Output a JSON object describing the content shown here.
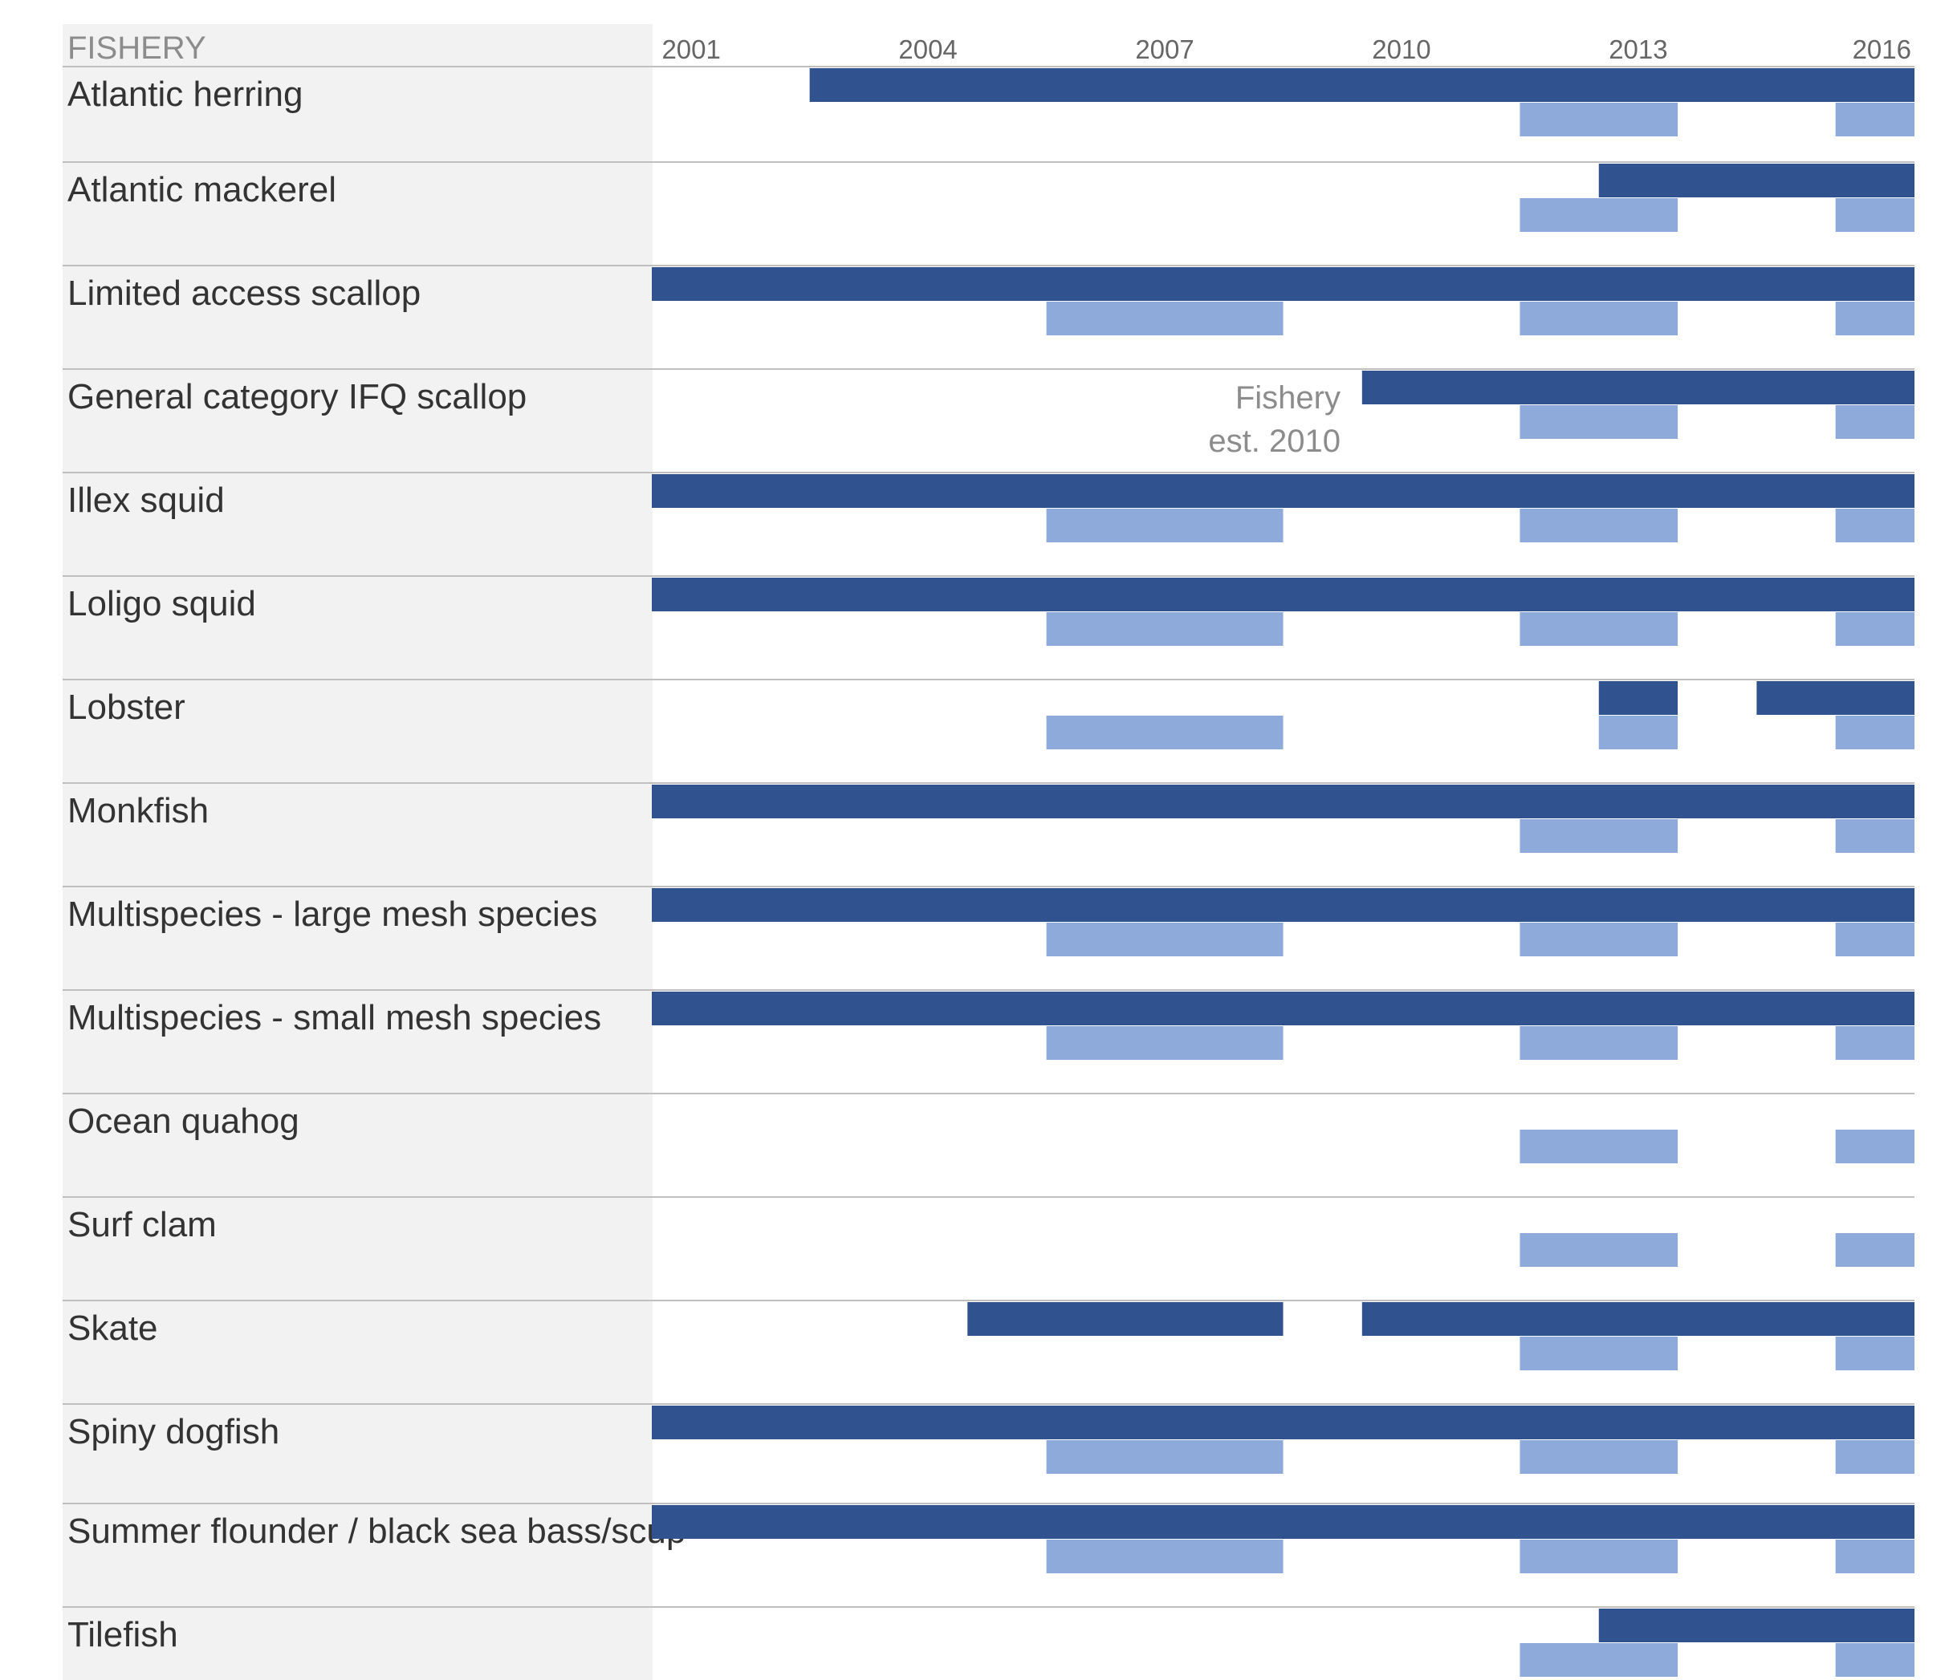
{
  "chart_data": {
    "type": "timeline",
    "column_header": "FISHERY",
    "x_ticks": [
      2001,
      2004,
      2007,
      2010,
      2013,
      2016
    ],
    "x_range": [
      2001,
      2017
    ],
    "colors": {
      "primary": "#30538f",
      "secondary": "#8eaadb",
      "label_panel": "#f2f2f2",
      "row_divider": "#bfbfbf"
    },
    "annotation": {
      "row": "General category IFQ scallop",
      "lines": [
        "Fishery",
        "est. 2010"
      ]
    },
    "rows": [
      {
        "label": "Atlantic herring",
        "primary": [
          [
            2003,
            2017
          ]
        ],
        "secondary": [
          [
            2012,
            2014
          ],
          [
            2016,
            2017
          ]
        ]
      },
      {
        "label": "Atlantic mackerel",
        "primary": [
          [
            2013,
            2017
          ]
        ],
        "secondary": [
          [
            2012,
            2014
          ],
          [
            2016,
            2017
          ]
        ]
      },
      {
        "label": "Limited access scallop",
        "primary": [
          [
            2001,
            2017
          ]
        ],
        "secondary": [
          [
            2006,
            2009
          ],
          [
            2012,
            2014
          ],
          [
            2016,
            2017
          ]
        ]
      },
      {
        "label": "General category IFQ scallop",
        "primary": [
          [
            2010,
            2017
          ]
        ],
        "secondary": [
          [
            2012,
            2014
          ],
          [
            2016,
            2017
          ]
        ]
      },
      {
        "label": "Illex squid",
        "primary": [
          [
            2001,
            2017
          ]
        ],
        "secondary": [
          [
            2006,
            2009
          ],
          [
            2012,
            2014
          ],
          [
            2016,
            2017
          ]
        ]
      },
      {
        "label": "Loligo squid",
        "primary": [
          [
            2001,
            2017
          ]
        ],
        "secondary": [
          [
            2006,
            2009
          ],
          [
            2012,
            2014
          ],
          [
            2016,
            2017
          ]
        ]
      },
      {
        "label": "Lobster",
        "primary": [
          [
            2013,
            2014
          ],
          [
            2015,
            2017
          ]
        ],
        "secondary": [
          [
            2006,
            2009
          ],
          [
            2013,
            2014
          ],
          [
            2016,
            2017
          ]
        ]
      },
      {
        "label": "Monkfish",
        "primary": [
          [
            2001,
            2017
          ]
        ],
        "secondary": [
          [
            2012,
            2014
          ],
          [
            2016,
            2017
          ]
        ]
      },
      {
        "label": "Multispecies - large mesh species",
        "primary": [
          [
            2001,
            2017
          ]
        ],
        "secondary": [
          [
            2006,
            2009
          ],
          [
            2012,
            2014
          ],
          [
            2016,
            2017
          ]
        ]
      },
      {
        "label": "Multispecies - small mesh species",
        "primary": [
          [
            2001,
            2017
          ]
        ],
        "secondary": [
          [
            2006,
            2009
          ],
          [
            2012,
            2014
          ],
          [
            2016,
            2017
          ]
        ]
      },
      {
        "label": "Ocean quahog",
        "primary": [],
        "secondary": [
          [
            2012,
            2014
          ],
          [
            2016,
            2017
          ]
        ]
      },
      {
        "label": "Surf clam",
        "primary": [],
        "secondary": [
          [
            2012,
            2014
          ],
          [
            2016,
            2017
          ]
        ]
      },
      {
        "label": "Skate",
        "primary": [
          [
            2005,
            2009
          ],
          [
            2010,
            2017
          ]
        ],
        "secondary": [
          [
            2012,
            2014
          ],
          [
            2016,
            2017
          ]
        ]
      },
      {
        "label": "Spiny dogfish",
        "primary": [
          [
            2001,
            2017
          ]
        ],
        "secondary": [
          [
            2006,
            2009
          ],
          [
            2012,
            2014
          ],
          [
            2016,
            2017
          ]
        ]
      },
      {
        "label": "Summer flounder / black sea bass/scup",
        "primary": [
          [
            2001,
            2017
          ]
        ],
        "secondary": [
          [
            2006,
            2009
          ],
          [
            2012,
            2014
          ],
          [
            2016,
            2017
          ]
        ]
      },
      {
        "label": "Tilefish",
        "primary": [
          [
            2013,
            2017
          ]
        ],
        "secondary": [
          [
            2012,
            2014
          ],
          [
            2016,
            2017
          ]
        ]
      }
    ]
  }
}
